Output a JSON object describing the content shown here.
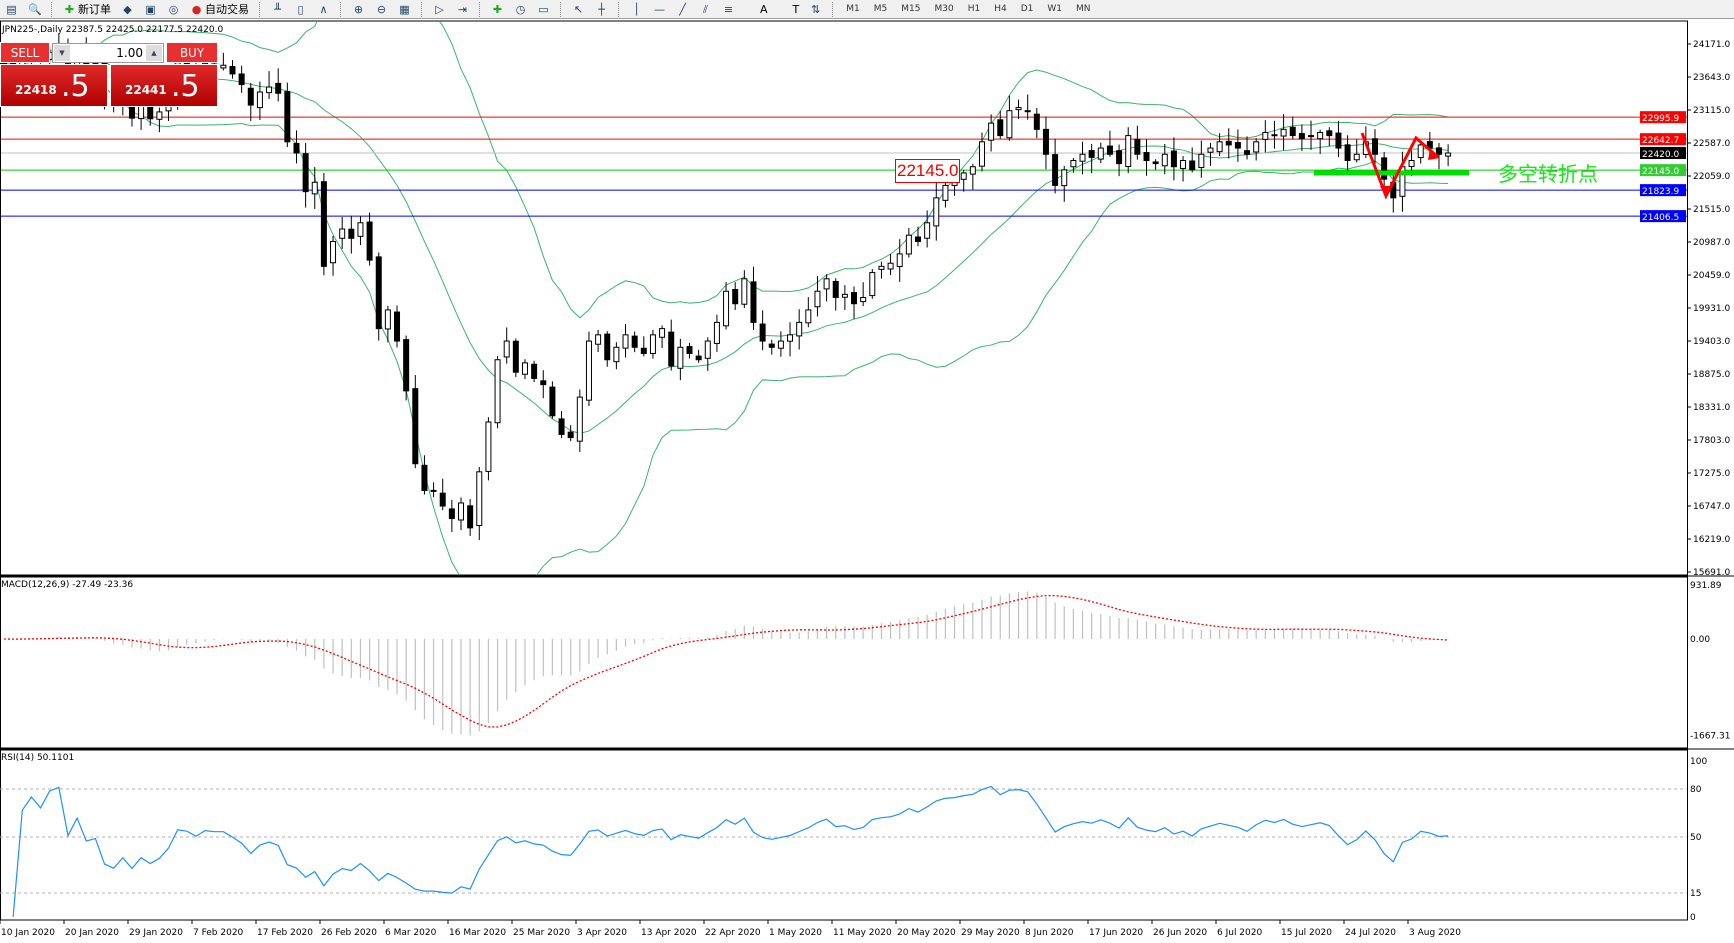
{
  "toolbar": {
    "items": [
      {
        "icon": "open-icon",
        "label": ""
      },
      {
        "icon": "zoom-icon",
        "label": ""
      },
      {
        "icon": "new-order-icon",
        "label": "新订单"
      },
      {
        "icon": "market-watch-icon",
        "label": ""
      },
      {
        "icon": "history-icon",
        "label": ""
      },
      {
        "icon": "signal-icon",
        "label": ""
      },
      {
        "icon": "auto-trading-icon",
        "label": "自动交易"
      },
      {
        "icon": "bar-chart-icon",
        "label": ""
      },
      {
        "icon": "candlestick-icon",
        "label": ""
      },
      {
        "icon": "line-chart-icon",
        "label": ""
      },
      {
        "icon": "zoom-in-icon",
        "label": ""
      },
      {
        "icon": "zoom-out-icon",
        "label": ""
      },
      {
        "icon": "tile-icon",
        "label": ""
      },
      {
        "icon": "autoscroll-icon",
        "label": ""
      },
      {
        "icon": "chart-shift-icon",
        "label": ""
      },
      {
        "icon": "indicators-icon",
        "label": ""
      },
      {
        "icon": "periods-icon",
        "label": ""
      },
      {
        "icon": "templates-icon",
        "label": ""
      },
      {
        "icon": "cursor-icon",
        "label": ""
      },
      {
        "icon": "crosshair-icon",
        "label": ""
      },
      {
        "icon": "vertical-line-icon",
        "label": ""
      },
      {
        "icon": "horizontal-line-icon",
        "label": ""
      },
      {
        "icon": "trendline-icon",
        "label": ""
      },
      {
        "icon": "channel-icon",
        "label": ""
      },
      {
        "icon": "fibonacci-icon",
        "label": ""
      },
      {
        "icon": "text-icon",
        "label": "A"
      },
      {
        "icon": "text-label-icon",
        "label": "T"
      },
      {
        "icon": "arrows-icon",
        "label": ""
      }
    ],
    "timeframes": [
      "M1",
      "M5",
      "M15",
      "M30",
      "H1",
      "H4",
      "D1",
      "W1",
      "MN"
    ]
  },
  "symbol_line": "JPN225-,Daily  22387.5 22425.0 22177.5 22420.0",
  "trade_panel": {
    "sell_label": "SELL",
    "buy_label": "BUY",
    "lot": "1.00",
    "sell_price_small": "22418",
    "sell_price_big": ".5",
    "buy_price_small": "22441",
    "buy_price_big": ".5"
  },
  "price_axis": [
    "24171.0",
    "23643.0",
    "23115.0",
    "22587.0",
    "22059.0",
    "21515.0",
    "20987.0",
    "20459.0",
    "19931.0",
    "19403.0",
    "18875.0",
    "18331.0",
    "17803.0",
    "17275.0",
    "16747.0",
    "16219.0",
    "15691.0"
  ],
  "levels": [
    {
      "price": 22995.9,
      "label": "22995.9",
      "color": "#ff0000"
    },
    {
      "price": 22642.7,
      "label": "22642.7",
      "color": "#ff0000"
    },
    {
      "price": 22420.0,
      "label": "22420.0",
      "color": "#000000",
      "line": "#c0c0c0"
    },
    {
      "price": 22145.0,
      "label": "22145.0",
      "color": "#33cc33",
      "line": "#00cc00"
    },
    {
      "price": 21823.9,
      "label": "21823.9",
      "color": "#0000ff"
    },
    {
      "price": 21406.5,
      "label": "21406.5",
      "color": "#0000ff"
    }
  ],
  "annotation": {
    "price_box": "22145.0",
    "text": "多空转折点",
    "text_color": "#19e619",
    "arrow_color": "#ff0000"
  },
  "macd": {
    "label": "MACD(12,26,9) -27.49 -23.36",
    "axis": [
      "931.89",
      "0.00",
      "-1667.31"
    ]
  },
  "rsi": {
    "label": "RSI(14) 50.1101",
    "axis": [
      "100",
      "80",
      "50",
      "15",
      "0"
    ]
  },
  "dates": [
    "10 Jan 2020",
    "20 Jan 2020",
    "29 Jan 2020",
    "7 Feb 2020",
    "17 Feb 2020",
    "26 Feb 2020",
    "6 Mar 2020",
    "16 Mar 2020",
    "25 Mar 2020",
    "3 Apr 2020",
    "13 Apr 2020",
    "22 Apr 2020",
    "1 May 2020",
    "11 May 2020",
    "20 May 2020",
    "29 May 2020",
    "8 Jun 2020",
    "17 Jun 2020",
    "26 Jun 2020",
    "6 Jul 2020",
    "15 Jul 2020",
    "24 Jul 2020",
    "3 Aug 2020"
  ],
  "chart_data": {
    "type": "candlestick",
    "symbol": "JPN225-",
    "period": "Daily",
    "ylim": [
      15691.0,
      24171.0
    ],
    "closes": [
      23850,
      23800,
      23900,
      23950,
      23930,
      24040,
      24080,
      23860,
      24030,
      23800,
      23830,
      23340,
      23210,
      23380,
      22980,
      23200,
      22970,
      23080,
      23320,
      23870,
      23830,
      23680,
      23860,
      23830,
      23830,
      23690,
      23520,
      23190,
      23400,
      23480,
      23380,
      22600,
      22420,
      21800,
      21950,
      20600,
      21000,
      21200,
      21050,
      21300,
      20700,
      19600,
      19900,
      19400,
      18600,
      17430,
      17000,
      17000,
      16750,
      16550,
      16800,
      16400,
      17300,
      18100,
      19100,
      19400,
      18900,
      19050,
      18800,
      18700,
      18200,
      17900,
      17850,
      18500,
      19400,
      19500,
      19100,
      19300,
      19500,
      19300,
      19200,
      19500,
      19600,
      19000,
      19300,
      19200,
      19100,
      19400,
      19700,
      20200,
      20000,
      20400,
      19700,
      19400,
      19300,
      19400,
      19500,
      19700,
      19900,
      20200,
      20400,
      20100,
      20150,
      20000,
      20100,
      20500,
      20600,
      20650,
      20800,
      21100,
      21000,
      21300,
      21700,
      21900,
      21950,
      22100,
      22200,
      22600,
      22900,
      22700,
      23100,
      23150,
      23100,
      22800,
      22400,
      21900,
      22150,
      22300,
      22400,
      22350,
      22500,
      22400,
      22250,
      22700,
      22400,
      22300,
      22250,
      22400,
      22200,
      22300,
      22150,
      22400,
      22500,
      22600,
      22550,
      22500,
      22400,
      22600,
      22750,
      22700,
      22800,
      22700,
      22650,
      22700,
      22750,
      22700,
      22500,
      22300,
      22400,
      22600,
      22400,
      22000,
      21700,
      22200,
      22300,
      22550,
      22500,
      22400,
      22420
    ],
    "indicators": [
      "Bollinger Bands(20,2)",
      "MACD(12,26,9)",
      "RSI(14)"
    ]
  }
}
